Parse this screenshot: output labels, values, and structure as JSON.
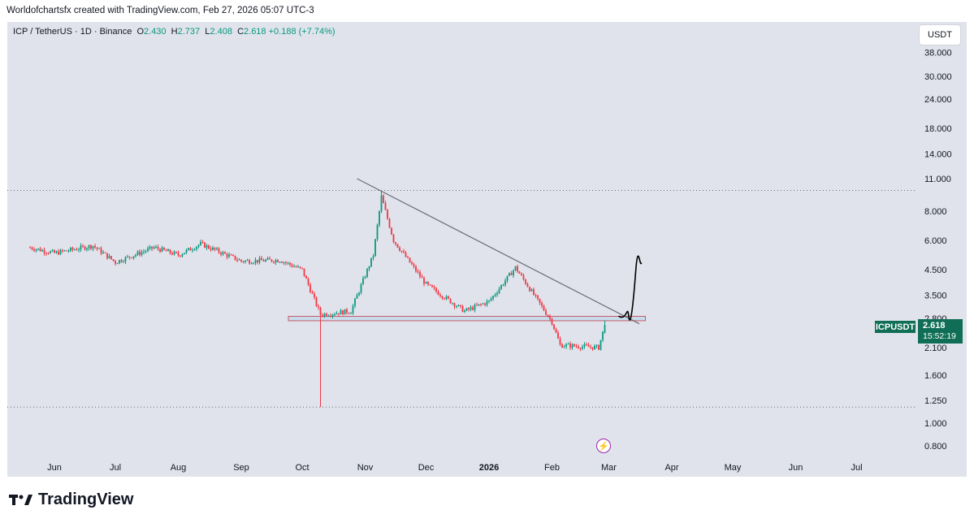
{
  "header": {
    "credit": "Worldofchartsfx created with TradingView.com, Feb 27, 2026 05:07 UTC-3"
  },
  "legend": {
    "symbol": "ICP / TetherUS · 1D · Binance",
    "o_label": "O",
    "o": "2.430",
    "h_label": "H",
    "h": "2.737",
    "l_label": "L",
    "l": "2.408",
    "c_label": "C",
    "c": "2.618",
    "change": "+0.188 (+7.74%)"
  },
  "unit_button": "USDT",
  "price_tag": {
    "symbol": "ICPUSDT",
    "price": "2.618",
    "countdown": "15:52:19"
  },
  "brand": {
    "name": "TradingView"
  },
  "colors": {
    "up": "#089981",
    "down": "#f23645",
    "trendline": "#6a6d78",
    "zone": "#c85a6a",
    "zone_fill": "#b2d8ec",
    "drawing": "#000000"
  },
  "chart_data": {
    "type": "candlestick",
    "symbol": "ICPUSDT",
    "timeframe": "1D",
    "exchange": "Binance",
    "y_scale": "log",
    "y_ticks": [
      "38.000",
      "30.000",
      "24.000",
      "18.000",
      "14.000",
      "11.000",
      "8.000",
      "6.000",
      "4.500",
      "3.500",
      "2.800",
      "2.100",
      "1.600",
      "1.250",
      "1.000",
      "0.800"
    ],
    "x_ticks": [
      "Jun",
      "Jul",
      "Aug",
      "Sep",
      "Oct",
      "Nov",
      "Dec",
      "2026",
      "Feb",
      "Mar",
      "Apr",
      "May",
      "Jun",
      "Jul"
    ],
    "close_path": [
      {
        "date": "2025-05-20",
        "price": 5.6
      },
      {
        "date": "2025-06-01",
        "price": 5.3
      },
      {
        "date": "2025-06-20",
        "price": 5.7
      },
      {
        "date": "2025-07-01",
        "price": 4.85
      },
      {
        "date": "2025-07-20",
        "price": 5.6
      },
      {
        "date": "2025-08-01",
        "price": 5.2
      },
      {
        "date": "2025-08-12",
        "price": 5.8
      },
      {
        "date": "2025-09-01",
        "price": 4.9
      },
      {
        "date": "2025-09-20",
        "price": 4.95
      },
      {
        "date": "2025-10-01",
        "price": 4.5
      },
      {
        "date": "2025-10-10",
        "price": 2.9
      },
      {
        "date": "2025-10-25",
        "price": 3.0
      },
      {
        "date": "2025-11-05",
        "price": 5.2
      },
      {
        "date": "2025-11-09",
        "price": 9.2
      },
      {
        "date": "2025-11-15",
        "price": 6.0
      },
      {
        "date": "2025-12-01",
        "price": 3.9
      },
      {
        "date": "2025-12-20",
        "price": 3.0
      },
      {
        "date": "2026-01-01",
        "price": 3.3
      },
      {
        "date": "2026-01-14",
        "price": 4.6
      },
      {
        "date": "2026-02-01",
        "price": 2.7
      },
      {
        "date": "2026-02-05",
        "price": 2.15
      },
      {
        "date": "2026-02-24",
        "price": 2.1
      },
      {
        "date": "2026-02-27",
        "price": 2.618
      }
    ],
    "wick_low": {
      "date": "2025-10-10",
      "price": 1.17
    },
    "wick_high": {
      "date": "2025-11-09",
      "price": 9.8
    },
    "trendline": [
      {
        "date": "2025-10-28",
        "price": 11.0
      },
      {
        "date": "2026-03-16",
        "price": 2.65
      }
    ],
    "support_zone": {
      "from": "2025-10-01",
      "to": "2026-03-19",
      "low": 2.73,
      "high": 2.85
    },
    "horizontal_lines": [
      9.8,
      1.17
    ],
    "projection": [
      {
        "date": "2026-03-06",
        "price": 2.85
      },
      {
        "date": "2026-03-10",
        "price": 2.95
      },
      {
        "date": "2026-03-13",
        "price": 3.2
      },
      {
        "date": "2026-03-17",
        "price": 4.8
      }
    ]
  }
}
